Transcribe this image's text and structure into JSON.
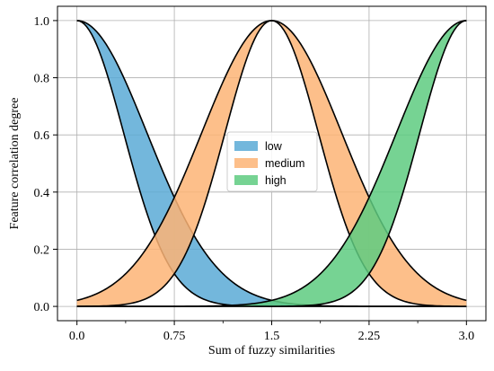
{
  "chart_data": {
    "type": "area",
    "title": "",
    "xlabel": "Sum of fuzzy similarities",
    "ylabel": "Feature correlation degree",
    "xlim": [
      -0.15,
      3.15
    ],
    "ylim": [
      -0.05,
      1.05
    ],
    "grid": true,
    "legend_position": "center",
    "x_ticks": [
      0.0,
      0.75,
      1.5,
      2.25,
      3.0
    ],
    "x_tick_labels": [
      "0.0",
      "0.75",
      "1.5",
      "2.25",
      "3.0"
    ],
    "x_minor_ticks": [
      0.375,
      1.125,
      1.875,
      2.625
    ],
    "y_ticks": [
      0.0,
      0.2,
      0.4,
      0.6,
      0.8,
      1.0
    ],
    "y_tick_labels": [
      "0.0",
      "0.2",
      "0.4",
      "0.6",
      "0.8",
      "1.0"
    ],
    "series": [
      {
        "name": "low",
        "color": "#5aaad6",
        "mean": 0.0,
        "sigma_lower": 0.36,
        "sigma_upper": 0.54
      },
      {
        "name": "medium",
        "color": "#fdb475",
        "mean": 1.5,
        "sigma_lower": 0.36,
        "sigma_upper": 0.54
      },
      {
        "name": "high",
        "color": "#5ecb80",
        "mean": 3.0,
        "sigma_lower": 0.36,
        "sigma_upper": 0.54
      }
    ]
  }
}
